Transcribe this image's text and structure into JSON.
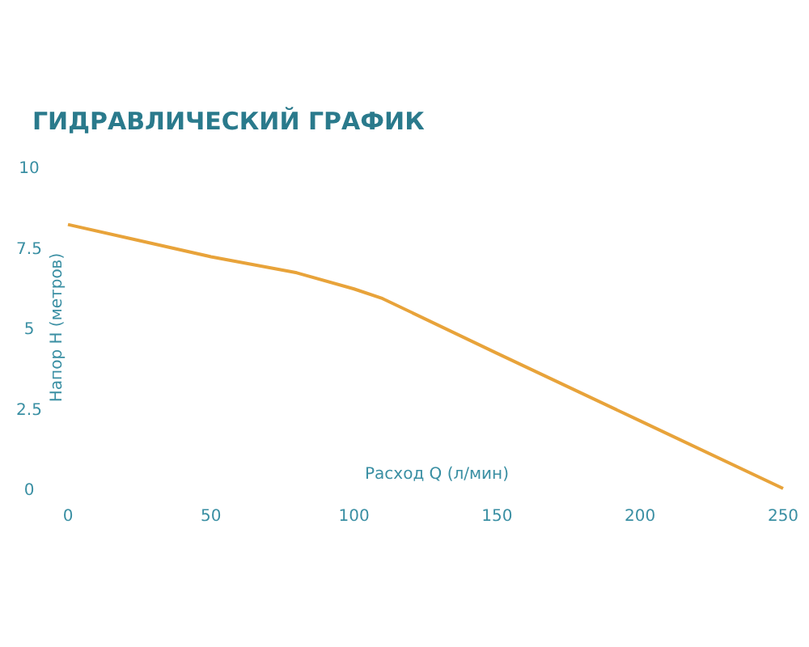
{
  "chart_data": {
    "type": "line",
    "title": "ГИДРАВЛИЧЕСКИЙ ГРАФИК",
    "xlabel": "Расход Q (л/мин)",
    "ylabel": "Напор H (метров)",
    "x": [
      0,
      25,
      50,
      80,
      100,
      110,
      150,
      200,
      250
    ],
    "series": [
      {
        "color": "#e8a33a",
        "values": [
          8.2,
          7.7,
          7.2,
          6.7,
          6.2,
          5.9,
          4.2,
          2.1,
          0
        ]
      }
    ],
    "xlim": [
      0,
      250
    ],
    "xticks": [
      0,
      50,
      100,
      150,
      200,
      250
    ],
    "ylim": [
      0,
      10
    ],
    "yticks": [
      0,
      {
        "value": 2.5,
        "label": "2.5"
      },
      5,
      {
        "value": 7.5,
        "label": "7.5"
      },
      10
    ],
    "grid": false,
    "marker": "none",
    "line_style": "solid"
  }
}
